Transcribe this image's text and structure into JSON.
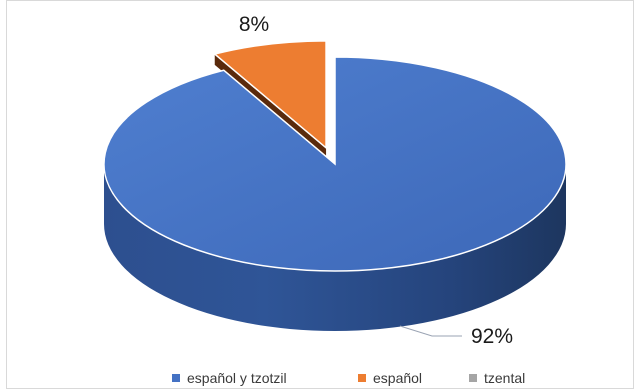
{
  "chart_data": {
    "type": "pie",
    "style": "3d-exploded",
    "categories": [
      "español y tzotzil",
      "español",
      "tzental"
    ],
    "values": [
      92,
      8,
      0
    ],
    "data_labels": [
      "92%",
      "8%",
      ""
    ],
    "colors": [
      "#4472c4",
      "#ed7d31",
      "#a5a5a5"
    ],
    "legend_position": "bottom"
  }
}
